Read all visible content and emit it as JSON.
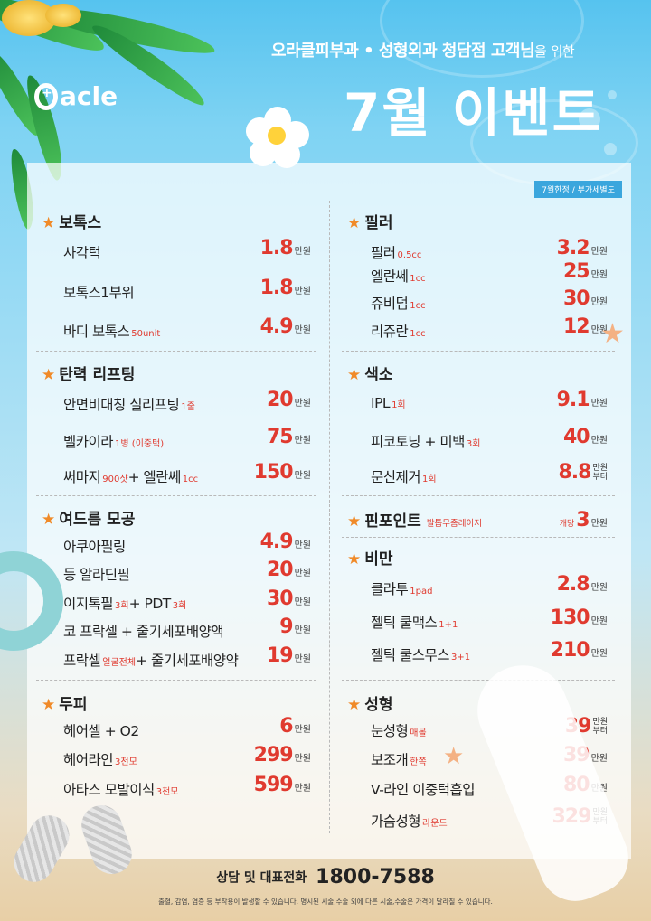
{
  "header": {
    "subtitle_main": "오라클피부과 • 성형외과 청담점 고객님",
    "subtitle_tail": "을 위한",
    "title": "7월 이벤트",
    "logo_text": "acle"
  },
  "badge": "7월한정 / 부가세별도",
  "sections": {
    "botox": {
      "title": "보톡스",
      "items": [
        {
          "name": "사각턱",
          "note": "",
          "price": "1.8",
          "unit": "만원"
        },
        {
          "name": "보톡스1부위",
          "note": "",
          "price": "1.8",
          "unit": "만원"
        },
        {
          "name": "바디 보톡스",
          "note": "50unit",
          "price": "4.9",
          "unit": "만원"
        }
      ]
    },
    "filler": {
      "title": "필러",
      "items": [
        {
          "name": "필러",
          "note": "0.5cc",
          "price": "3.2",
          "unit": "만원"
        },
        {
          "name": "엘란쎄",
          "note": "1cc",
          "price": "25",
          "unit": "만원"
        },
        {
          "name": "쥬비덤",
          "note": "1cc",
          "price": "30",
          "unit": "만원"
        },
        {
          "name": "리쥬란",
          "note": "1cc",
          "price": "12",
          "unit": "만원"
        }
      ]
    },
    "lifting": {
      "title": "탄력 리프팅",
      "items": [
        {
          "name": "안면비대칭 실리프팅",
          "note": "1줄",
          "price": "20",
          "unit": "만원"
        },
        {
          "name": "벨카이라",
          "note": "1병 (이중턱)",
          "price": "75",
          "unit": "만원"
        },
        {
          "name": "써마지",
          "note": "900샷",
          "name2": "+ 엘란쎄",
          "note2": "1cc",
          "price": "150",
          "unit": "만원"
        }
      ]
    },
    "pigment": {
      "title": "색소",
      "items": [
        {
          "name": "IPL",
          "note": "1회",
          "price": "9.1",
          "unit": "만원"
        },
        {
          "name": "피코토닝 + 미백",
          "note": "3회",
          "price": "40",
          "unit": "만원"
        },
        {
          "name": "문신제거",
          "note": "1회",
          "price": "8.8",
          "unit_top": "만원",
          "unit_bottom": "부터"
        }
      ]
    },
    "acne": {
      "title": "여드름 모공",
      "items": [
        {
          "name": "아쿠아필링",
          "note": "",
          "price": "4.9",
          "unit": "만원"
        },
        {
          "name": "등 알라딘필",
          "note": "",
          "price": "20",
          "unit": "만원"
        },
        {
          "name": "이지톡필",
          "note": "3회",
          "name2": "+ PDT",
          "note2": "3회",
          "price": "30",
          "unit": "만원"
        },
        {
          "name": "코 프락셀 + 줄기세포배양액",
          "note": "",
          "price": "9",
          "unit": "만원"
        },
        {
          "name": "프락셀",
          "note": "얼굴전체",
          "name2": "+ 줄기세포배양약",
          "note2": "",
          "price": "19",
          "unit": "만원"
        }
      ]
    },
    "pinpoint": {
      "title": "핀포인트",
      "note": "발톱무좀레이저",
      "pre": "개당",
      "price": "3",
      "unit": "만원"
    },
    "diet": {
      "title": "비만",
      "items": [
        {
          "name": "클라투",
          "note": "1pad",
          "price": "2.8",
          "unit": "만원"
        },
        {
          "name": "젤틱 쿨맥스",
          "note": "1+1",
          "price": "130",
          "unit": "만원"
        },
        {
          "name": "젤틱 쿨스무스",
          "note": "3+1",
          "price": "210",
          "unit": "만원"
        }
      ]
    },
    "scalp": {
      "title": "두피",
      "items": [
        {
          "name": "헤어셀 + O2",
          "note": "",
          "price": "6",
          "unit": "만원"
        },
        {
          "name": "헤어라인",
          "note": "3천모",
          "price": "299",
          "unit": "만원"
        },
        {
          "name": "아타스 모발이식",
          "note": "3천모",
          "price": "599",
          "unit": "만원"
        }
      ]
    },
    "surgery": {
      "title": "성형",
      "items": [
        {
          "name": "눈성형",
          "note": "매몰",
          "price": "39",
          "unit_top": "만원",
          "unit_bottom": "부터"
        },
        {
          "name": "보조개",
          "note": "한쪽",
          "price": "39",
          "unit": "만원"
        },
        {
          "name": "V-라인 이중턱흡입",
          "note": "",
          "price": "80",
          "unit": "만원"
        },
        {
          "name": "가슴성형",
          "note": "라운드",
          "price": "329",
          "unit_top": "만원",
          "unit_bottom": "부터"
        }
      ]
    }
  },
  "footer": {
    "call_label": "상담 및 대표전화",
    "phone": "1800-7588",
    "disclaimer": "출혈, 감염, 염증 등 부작용이 발생할 수 있습니다. 명시된 시술,수술 외에 다른 시술,수술은 가격이 달라질 수 있습니다."
  },
  "colors": {
    "accent_price": "#e03a2f",
    "star": "#f08a28",
    "badge": "#3aa6dd"
  }
}
